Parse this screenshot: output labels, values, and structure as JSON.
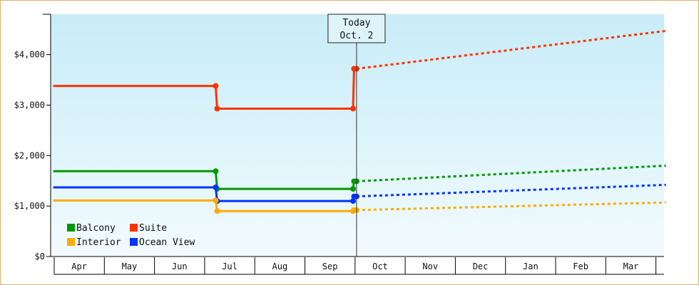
{
  "chart_data": {
    "type": "line",
    "title": "",
    "xlabel": "",
    "ylabel": "",
    "ylim": [
      0,
      4800
    ],
    "y_ticks": [
      0,
      1000,
      2000,
      3000,
      4000
    ],
    "y_tick_labels": [
      "$0",
      "$1,000",
      "$2,000",
      "$3,000",
      "$4,000"
    ],
    "x_tick_labels": [
      "Apr",
      "May",
      "Jun",
      "Jul",
      "Aug",
      "Sep",
      "Oct",
      "Nov",
      "Dec",
      "Jan",
      "Feb",
      "Mar"
    ],
    "today_marker": {
      "line1": "Today",
      "line2": "Oct. 2",
      "month_index": 6.03
    },
    "grid": false,
    "legend_position": "bottom-left",
    "colors": {
      "Suite": "#ff3300",
      "Balcony": "#009900",
      "Ocean View": "#0033ff",
      "Interior": "#ffaa00",
      "today_line": "#333333",
      "plot_top": "#c8ecf8",
      "plot_bottom": "#f2fbfe"
    },
    "series": [
      {
        "name": "Suite",
        "actual": [
          {
            "m": -0.02,
            "y": 3380
          },
          {
            "m": 3.22,
            "y": 3380
          },
          {
            "m": 3.25,
            "y": 2930
          },
          {
            "m": 5.96,
            "y": 2930
          },
          {
            "m": 5.98,
            "y": 3720
          },
          {
            "m": 6.03,
            "y": 3720
          }
        ],
        "forecast": [
          {
            "m": 6.03,
            "y": 3720
          },
          {
            "m": 12.2,
            "y": 4470
          }
        ]
      },
      {
        "name": "Balcony",
        "actual": [
          {
            "m": -0.02,
            "y": 1690
          },
          {
            "m": 3.22,
            "y": 1690
          },
          {
            "m": 3.25,
            "y": 1340
          },
          {
            "m": 5.96,
            "y": 1340
          },
          {
            "m": 5.98,
            "y": 1490
          },
          {
            "m": 6.03,
            "y": 1490
          }
        ],
        "forecast": [
          {
            "m": 6.03,
            "y": 1490
          },
          {
            "m": 12.2,
            "y": 1800
          }
        ]
      },
      {
        "name": "Ocean View",
        "actual": [
          {
            "m": -0.02,
            "y": 1370
          },
          {
            "m": 3.22,
            "y": 1370
          },
          {
            "m": 3.25,
            "y": 1100
          },
          {
            "m": 5.96,
            "y": 1100
          },
          {
            "m": 5.98,
            "y": 1190
          },
          {
            "m": 6.03,
            "y": 1190
          }
        ],
        "forecast": [
          {
            "m": 6.03,
            "y": 1190
          },
          {
            "m": 12.2,
            "y": 1420
          }
        ]
      },
      {
        "name": "Interior",
        "actual": [
          {
            "m": -0.02,
            "y": 1110
          },
          {
            "m": 3.22,
            "y": 1110
          },
          {
            "m": 3.25,
            "y": 900
          },
          {
            "m": 5.96,
            "y": 900
          },
          {
            "m": 5.98,
            "y": 920
          },
          {
            "m": 6.03,
            "y": 920
          }
        ],
        "forecast": [
          {
            "m": 6.03,
            "y": 920
          },
          {
            "m": 12.2,
            "y": 1070
          }
        ]
      }
    ],
    "legend": [
      {
        "name": "Balcony",
        "color": "#009900"
      },
      {
        "name": "Suite",
        "color": "#ff3300"
      },
      {
        "name": "Interior",
        "color": "#ffaa00"
      },
      {
        "name": "Ocean View",
        "color": "#0033ff"
      }
    ]
  }
}
